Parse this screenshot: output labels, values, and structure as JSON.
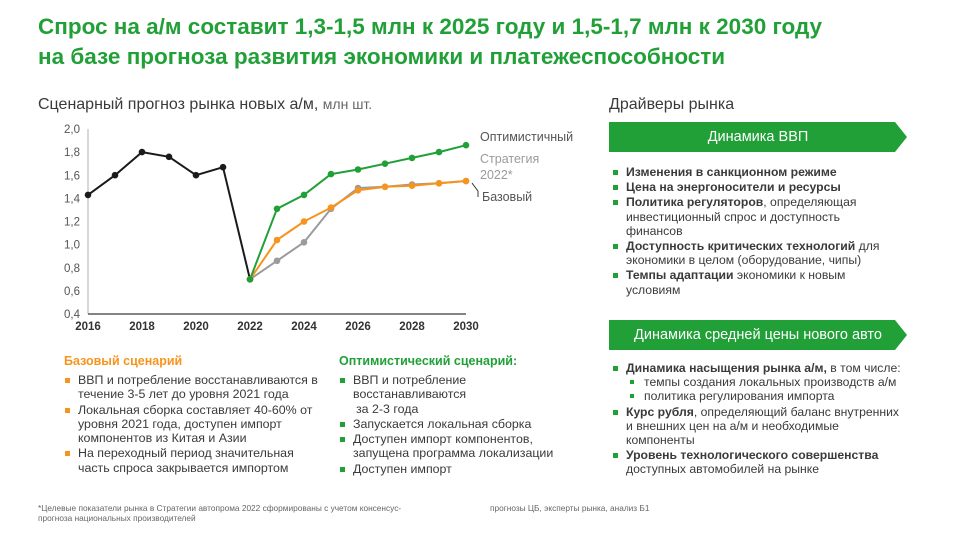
{
  "title": {
    "line1": "Спрос на а/м составит 1,3-1,5 млн к 2025 году и 1,5-1,7 млн к 2030 году",
    "line2": "на базе прогноза развития экономики и платежеспособности"
  },
  "chart_section": {
    "heading": "Сценарный прогноз рынка новых а/м,",
    "unit": "млн шт."
  },
  "drivers_section": {
    "heading": "Драйверы рынка"
  },
  "colors": {
    "green": "#21a038",
    "orange": "#f7941d",
    "black": "#1a1a1a",
    "grey": "#9b9b9b"
  },
  "chart_data": {
    "type": "line",
    "x_range": [
      2016,
      2030
    ],
    "ylim": [
      0.4,
      2.0
    ],
    "x_ticks": [
      "2016",
      "2018",
      "2020",
      "2022",
      "2024",
      "2026",
      "2028",
      "2030"
    ],
    "y_ticks": [
      "2,0",
      "1,8",
      "1,6",
      "1,4",
      "1,2",
      "1,0",
      "0,8",
      "0,6",
      "0,4"
    ],
    "grid": false,
    "legend_placement": "right, inline labels at line ends",
    "series": [
      {
        "key": "hist",
        "color": "#1a1a1a",
        "x": [
          2016,
          2017,
          2018,
          2019,
          2020,
          2021,
          2022
        ],
        "y": [
          1.43,
          1.6,
          1.8,
          1.76,
          1.6,
          1.67,
          0.7
        ]
      },
      {
        "key": "strategy",
        "name": "Стратегия 2022*",
        "color": "#9b9b9b",
        "x": [
          2022,
          2023,
          2024,
          2025,
          2026,
          2027,
          2028,
          2029,
          2030
        ],
        "y": [
          0.7,
          0.86,
          1.02,
          1.31,
          1.49,
          1.5,
          1.52,
          1.53,
          1.55
        ]
      },
      {
        "key": "base",
        "name": "Базовый",
        "color": "#f7941d",
        "x": [
          2022,
          2023,
          2024,
          2025,
          2026,
          2027,
          2028,
          2029,
          2030
        ],
        "y": [
          0.7,
          1.04,
          1.2,
          1.32,
          1.47,
          1.5,
          1.51,
          1.53,
          1.55
        ]
      },
      {
        "key": "opt",
        "name": "Оптимистичный",
        "color": "#21a038",
        "x": [
          2022,
          2023,
          2024,
          2025,
          2026,
          2027,
          2028,
          2029,
          2030
        ],
        "y": [
          0.7,
          1.31,
          1.43,
          1.61,
          1.65,
          1.7,
          1.75,
          1.8,
          1.86
        ]
      }
    ],
    "labels": {
      "opt": "Оптимистичный",
      "strategy_line1": "Стратегия",
      "strategy_line2": "2022*",
      "base": "Базовый"
    }
  },
  "drivers": {
    "gdp": {
      "header": "Динамика ВВП",
      "items": [
        {
          "bold": "Изменения в санкционном режиме",
          "rest": ""
        },
        {
          "bold": "Цена на энергоносители и ресурсы",
          "rest": ""
        },
        {
          "bold": "Политика регуляторов",
          "rest": ", определяющая инвестиционный спрос и доступность финансов"
        },
        {
          "bold": "Доступность критических технологий",
          "rest": " для экономики в целом (оборудование, чипы)"
        },
        {
          "bold": "Темпы адаптации",
          "rest": " экономики к новым условиям"
        }
      ]
    },
    "price": {
      "header": "Динамика средней цены нового авто",
      "items": [
        {
          "bold": "Динамика насыщения рынка а/м,",
          "rest": " в том числе:",
          "sub": [
            "темпы создания локальных производств а/м",
            "политика регулирования импорта"
          ]
        },
        {
          "bold": "Курс рубля",
          "rest": ", определяющий баланс внутренних и внешних цен на а/м и необходимые компоненты"
        },
        {
          "bold": "Уровень технологического совершенства",
          "rest": " доступных автомобилей на рынке"
        }
      ]
    }
  },
  "scenarios": {
    "base": {
      "heading": "Базовый сценарий",
      "items": [
        "ВВП и потребление восстанавливаются в течение 3-5 лет до уровня 2021 года",
        "Локальная сборка составляет 40-60% от уровня 2021 года, доступен импорт компонентов из Китая и Азии",
        "На переходный период значительная часть спроса закрывается импортом"
      ]
    },
    "optimistic": {
      "heading": "Оптимистический сценарий:",
      "items": [
        "ВВП и потребление восстанавливаются",
        "за 2-3 года",
        "Запускается локальная сборка",
        "Доступен импорт компонентов, запущена программа локализации",
        "Доступен импорт"
      ]
    }
  },
  "footnotes": {
    "left_line1": "*Целевые показатели рынка в Стратегии автопрома 2022 сформированы с учетом консенсус-",
    "left_line2": "прогноза национальных производителей",
    "right": "прогнозы ЦБ, эксперты рынка, анализ Б1"
  }
}
